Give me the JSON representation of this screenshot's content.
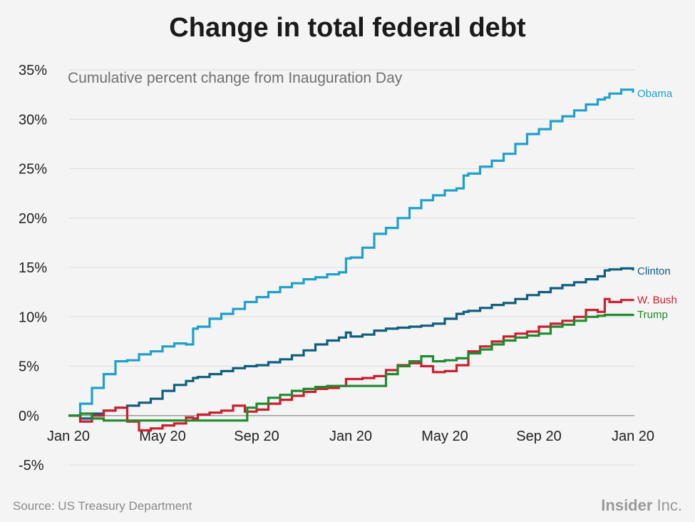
{
  "title": "Change in total federal debt",
  "subtitle": "Cumulative percent change from Inauguration Day",
  "source": "Source: US Treasury Department",
  "brand": {
    "bold": "Insider",
    "light": " Inc."
  },
  "chart_data": {
    "type": "line",
    "title": "Change in total federal debt",
    "subtitle": "Cumulative percent change from Inauguration Day",
    "xlabel": "",
    "ylabel": "",
    "ylim": [
      -5,
      35
    ],
    "yticks": [
      -5,
      0,
      5,
      10,
      15,
      20,
      25,
      30,
      35
    ],
    "ytick_labels": [
      "-5%",
      "0%",
      "5%",
      "10%",
      "15%",
      "20%",
      "25%",
      "30%",
      "35%"
    ],
    "x_domain_months": [
      0,
      24
    ],
    "xticks": [
      0,
      4,
      8,
      12,
      16,
      20,
      24
    ],
    "xtick_labels": [
      "Jan 20",
      "May 20",
      "Sep 20",
      "Jan 20",
      "May 20",
      "Sep 20",
      "Jan 20"
    ],
    "grid": true,
    "legend": "end-of-line labels",
    "series": [
      {
        "name": "Obama",
        "color": "#1fa0cc",
        "x": [
          0,
          0.5,
          1,
          1.5,
          2,
          2.5,
          3,
          3.5,
          4,
          4.5,
          5,
          5.3,
          5.5,
          6,
          6.5,
          7,
          7.5,
          8,
          8.5,
          9,
          9.5,
          10,
          10.5,
          11,
          11.5,
          11.8,
          12,
          12.5,
          13,
          13.5,
          14,
          14.5,
          15,
          15.5,
          16,
          16.5,
          16.8,
          17,
          17.5,
          18,
          18.5,
          19,
          19.5,
          20,
          20.5,
          21,
          21.5,
          22,
          22.5,
          22.8,
          23,
          23.5,
          24
        ],
        "values": [
          0,
          1.2,
          2.8,
          4.2,
          5.5,
          5.6,
          6.2,
          6.5,
          7.0,
          7.3,
          7.2,
          8.8,
          9.0,
          9.8,
          10.3,
          10.8,
          11.5,
          12.0,
          12.5,
          13.0,
          13.4,
          13.8,
          14.0,
          14.3,
          14.5,
          15.9,
          16.0,
          17.0,
          18.4,
          19.0,
          20.0,
          21.0,
          21.8,
          22.3,
          22.8,
          23.0,
          24.3,
          24.5,
          25.2,
          25.8,
          26.5,
          27.5,
          28.5,
          29.0,
          29.8,
          30.3,
          30.9,
          31.5,
          32.0,
          32.2,
          32.6,
          33.0,
          32.7
        ]
      },
      {
        "name": "Clinton",
        "color": "#0f5e80",
        "x": [
          0,
          0.5,
          1,
          1.5,
          2,
          2.5,
          3,
          3.5,
          4,
          4.5,
          5,
          5.3,
          5.5,
          6,
          6.5,
          7,
          7.5,
          8,
          8.5,
          9,
          9.5,
          10,
          10.5,
          11,
          11.5,
          11.8,
          12,
          12.5,
          13,
          13.5,
          14,
          14.5,
          15,
          15.5,
          16,
          16.5,
          16.8,
          17,
          17.5,
          18,
          18.5,
          19,
          19.5,
          20,
          20.5,
          21,
          21.5,
          22,
          22.5,
          22.8,
          23,
          23.5,
          24
        ],
        "values": [
          0,
          -0.3,
          0.2,
          0.5,
          0.8,
          1.0,
          1.3,
          1.7,
          2.5,
          3.1,
          3.5,
          3.8,
          3.9,
          4.2,
          4.5,
          4.8,
          5.0,
          5.1,
          5.4,
          5.7,
          6.1,
          6.6,
          7.2,
          7.6,
          7.9,
          8.4,
          8.0,
          8.2,
          8.6,
          8.8,
          8.9,
          9.0,
          9.1,
          9.3,
          9.8,
          10.3,
          10.5,
          10.6,
          10.9,
          11.2,
          11.4,
          11.8,
          12.2,
          12.5,
          12.9,
          13.2,
          13.5,
          13.8,
          14.1,
          14.7,
          14.8,
          14.9,
          14.7
        ]
      },
      {
        "name": "W. Bush",
        "color": "#cc1f2e",
        "x": [
          0,
          0.5,
          1,
          1.5,
          2,
          2.5,
          3,
          3.5,
          4,
          4.5,
          5,
          5.3,
          5.5,
          6,
          6.5,
          7,
          7.5,
          8,
          8.5,
          9,
          9.5,
          10,
          10.5,
          11,
          11.5,
          11.8,
          12,
          12.5,
          13,
          13.5,
          14,
          14.5,
          15,
          15.5,
          16,
          16.5,
          16.8,
          17,
          17.5,
          18,
          18.5,
          19,
          19.5,
          20,
          20.5,
          21,
          21.5,
          22,
          22.5,
          22.8,
          23,
          23.5,
          24
        ],
        "values": [
          0,
          -0.6,
          0,
          0.5,
          0.8,
          -0.6,
          -1.5,
          -1.3,
          -1.0,
          -0.8,
          -0.2,
          -0.3,
          0.1,
          0.3,
          0.5,
          1.0,
          0.4,
          0.6,
          1.2,
          1.6,
          2.0,
          2.4,
          2.7,
          2.8,
          3.0,
          3.7,
          3.7,
          3.8,
          4.0,
          4.6,
          5.1,
          5.3,
          5.0,
          4.4,
          4.5,
          5.1,
          5.1,
          6.5,
          7.0,
          7.5,
          8.0,
          8.3,
          8.5,
          9.0,
          9.3,
          9.6,
          10.0,
          10.7,
          10.5,
          11.8,
          11.5,
          11.7,
          11.8
        ]
      },
      {
        "name": "Trump",
        "color": "#1e8c2e",
        "x": [
          0,
          0.5,
          1,
          1.5,
          2,
          2.5,
          3,
          3.5,
          4,
          4.5,
          5,
          5.3,
          5.5,
          6,
          6.5,
          7,
          7.5,
          7.6,
          8,
          8.5,
          9,
          9.5,
          10,
          10.5,
          11,
          11.5,
          11.8,
          12,
          12.5,
          13,
          13.5,
          14,
          14.5,
          15,
          15.5,
          16,
          16.5,
          16.8,
          17,
          17.5,
          18,
          18.5,
          19,
          19.5,
          20,
          20.5,
          21,
          21.5,
          22,
          22.5,
          22.8,
          23,
          23.5,
          24
        ],
        "values": [
          0,
          0.2,
          -0.3,
          -0.5,
          -0.5,
          -0.5,
          -0.5,
          -0.5,
          -0.5,
          -0.5,
          -0.5,
          -0.5,
          -0.5,
          -0.5,
          -0.5,
          -0.5,
          -0.5,
          0.8,
          1.2,
          1.8,
          2.1,
          2.5,
          2.7,
          2.9,
          3.0,
          3.0,
          3.0,
          3.0,
          3.0,
          3.0,
          4.2,
          5.0,
          5.5,
          6.0,
          5.5,
          5.6,
          5.8,
          5.8,
          6.3,
          6.7,
          7.2,
          7.6,
          7.9,
          8.1,
          8.3,
          9.0,
          9.2,
          9.6,
          10.0,
          10.1,
          10.2,
          10.2,
          10.2,
          10.3
        ]
      }
    ]
  }
}
